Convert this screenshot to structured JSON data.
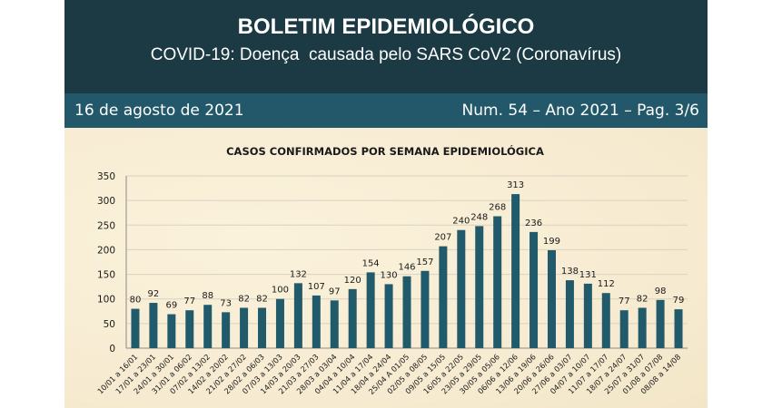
{
  "header": {
    "title": "BOLETIM EPIDEMIOLÓGICO",
    "subtitle": "COVID-19: Doença  causada pelo SARS CoV2 (Coronavírus)",
    "date": "16 de agosto de 2021",
    "issue": "Num. 54 – Ano 2021 – Pag. 3/6"
  },
  "colors": {
    "header_dark": "#1b3a44",
    "band": "#23576a",
    "bar": "#215a6b",
    "background": "#f7ecd2"
  },
  "chart_data": {
    "type": "bar",
    "title": "CASOS CONFIRMADOS POR SEMANA EPIDEMIOLÓGICA",
    "xlabel": "",
    "ylabel": "",
    "ylim": [
      0,
      350
    ],
    "yticks": [
      0,
      50,
      100,
      150,
      200,
      250,
      300,
      350
    ],
    "grid": true,
    "categories": [
      "10/01 a 16/01",
      "17/01 a 23/01",
      "24/01 a 30/01",
      "31/01 a 06/02",
      "07/02 a 13/02",
      "14/02 a 20/02",
      "21/02 a 27/02",
      "28/02 a 06/03",
      "07/03 a 13/03",
      "14/03 a 20/03",
      "21/03 a 27/03",
      "28/03 a 03/04",
      "04/04 a 10/04",
      "11/04 a 17/04",
      "18/04 a 24/04",
      "25/04 A 01/05",
      "02/05 a 08/05",
      "09/05 a 15/05",
      "16/05 a 22/05",
      "23/05 a 29/05",
      "30/05 a 05/06",
      "06/06 a 12/06",
      "13/06 a 19/06",
      "20/06 a 26/06",
      "27/06 a 03/07",
      "04/07 a 10/07",
      "11/07 a 17/07",
      "18/07 a 24/07",
      "25/07 a 31/07",
      "01/08 a 07/08",
      "08/08 a 14/08"
    ],
    "values": [
      80,
      92,
      69,
      77,
      88,
      73,
      82,
      82,
      100,
      132,
      107,
      97,
      120,
      154,
      130,
      146,
      157,
      207,
      240,
      248,
      268,
      313,
      236,
      199,
      138,
      131,
      112,
      77,
      82,
      98,
      79
    ]
  }
}
